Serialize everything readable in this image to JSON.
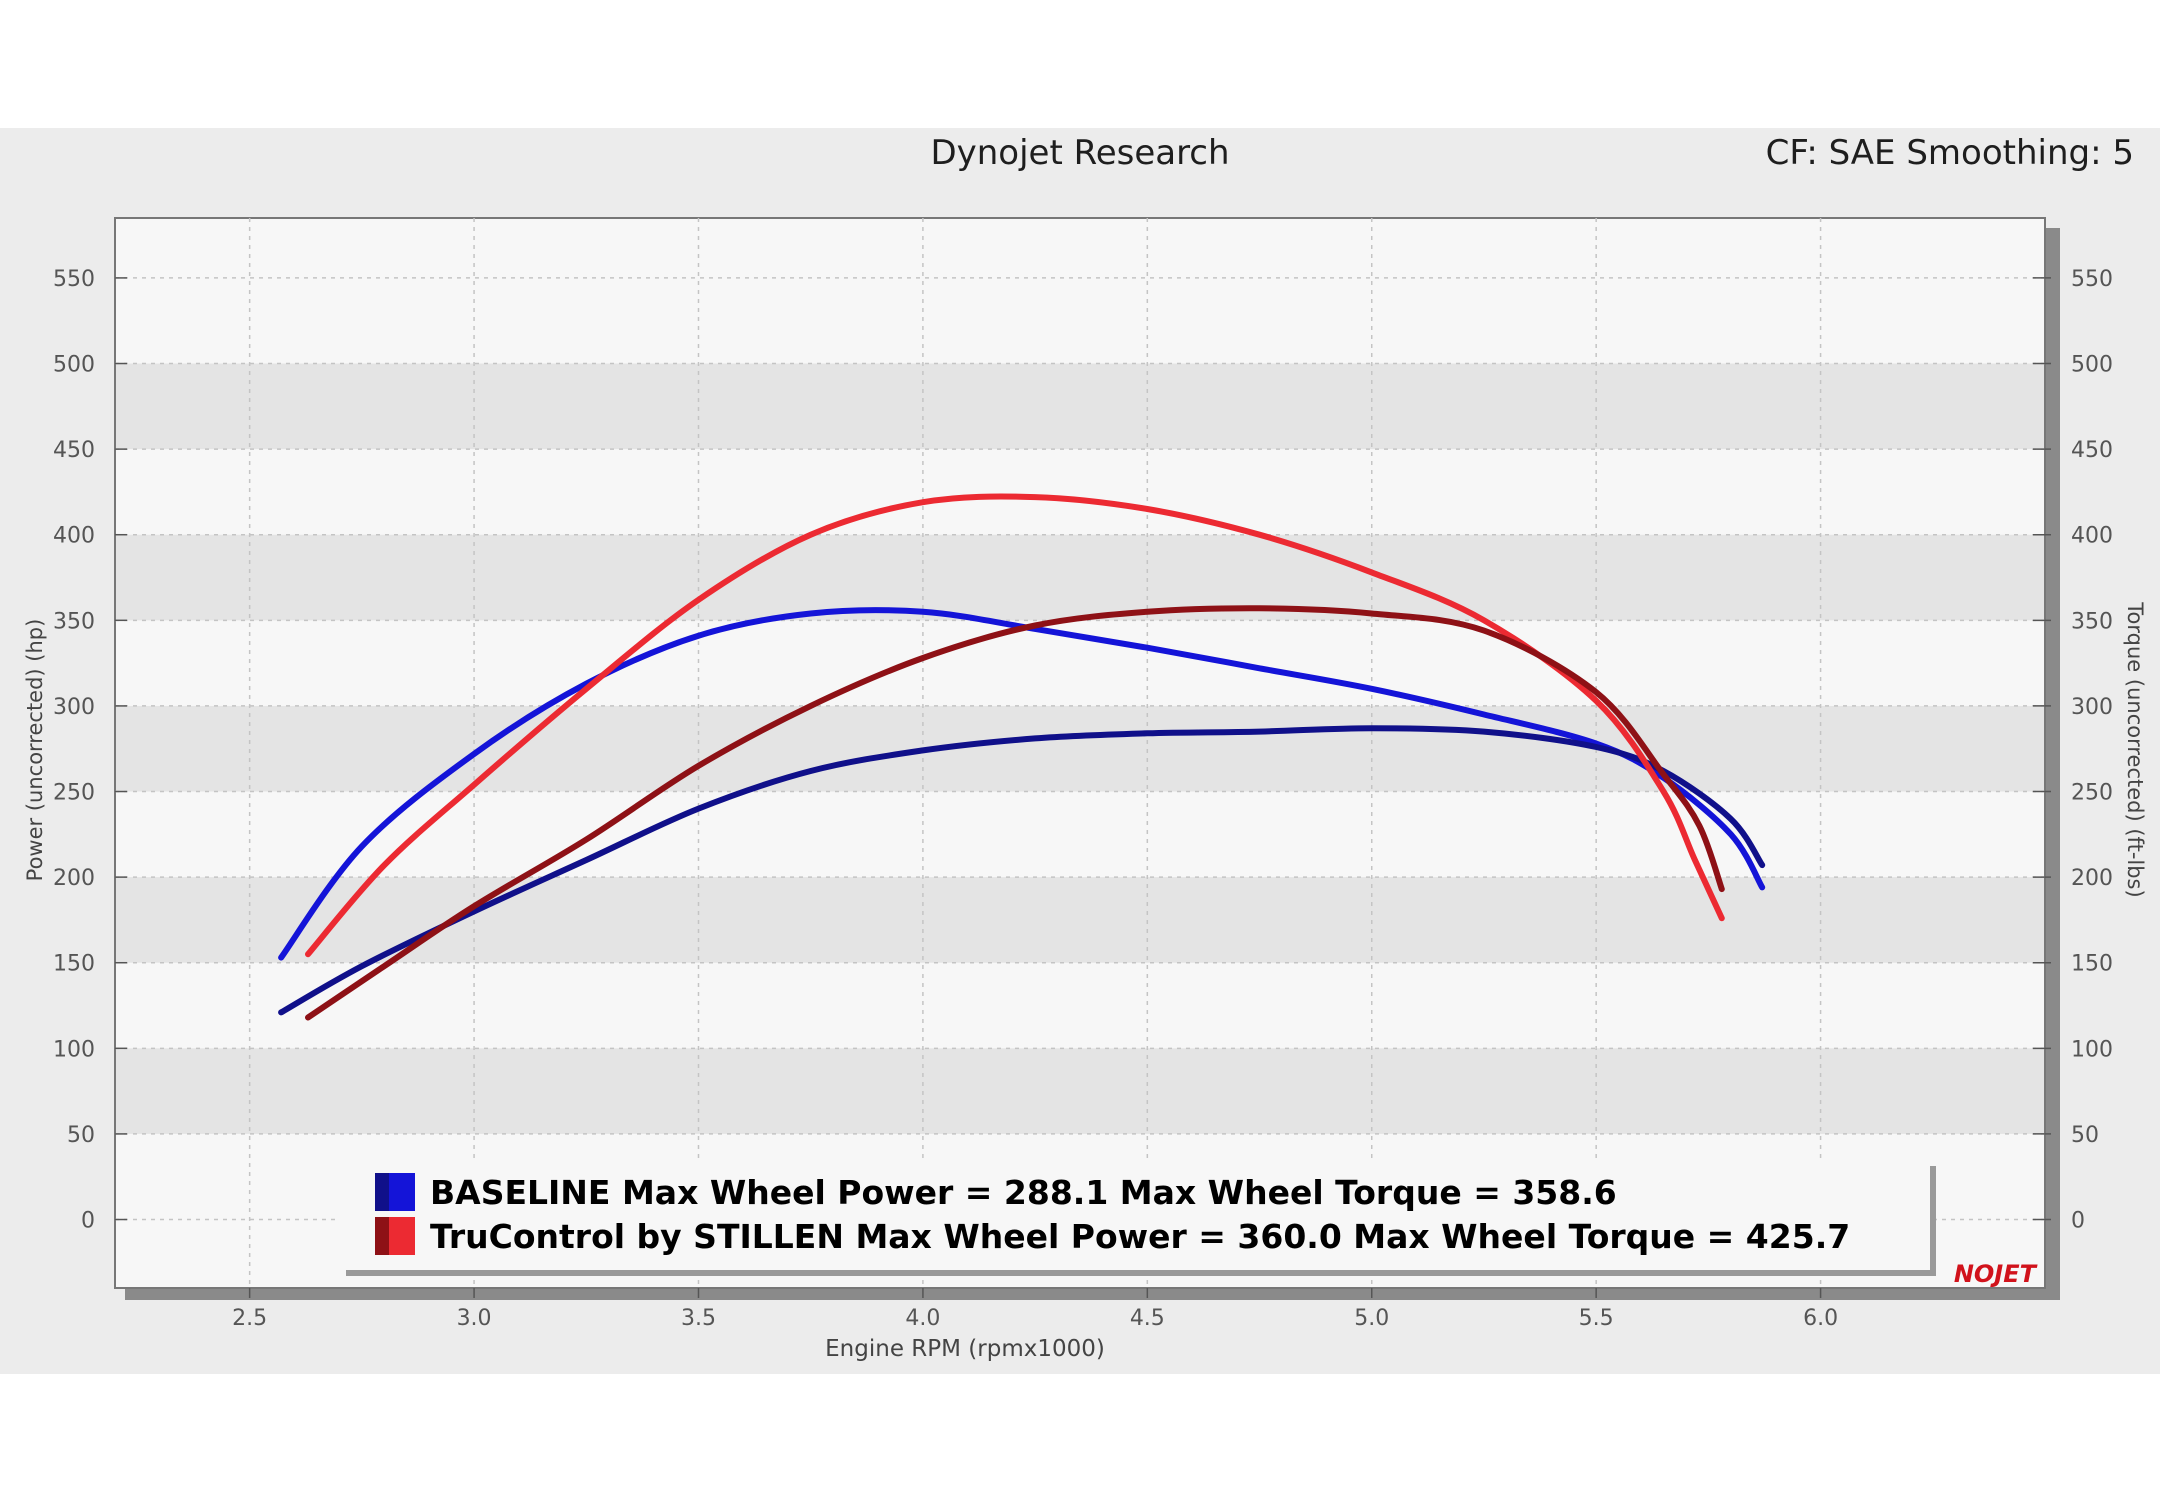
{
  "header": {
    "title": "Dynojet Research",
    "settings": "CF: SAE Smoothing: 5"
  },
  "logo_text": "NOJET",
  "colors": {
    "baseline": "#1414d8",
    "baseline_torque": "#10108a",
    "trucontrol": "#ec2a32",
    "trucontrol_torque": "#8e1116",
    "band": "#e4e4e4",
    "panel": "#ececec"
  },
  "chart_data": {
    "type": "line",
    "xlabel": "Engine RPM (rpmx1000)",
    "ylabel": "Power (uncorrected) (hp)",
    "ylabel_right": "Torque (uncorrected) (ft-lbs)",
    "xlim": [
      2.2,
      6.5
    ],
    "ylim": [
      -40,
      585
    ],
    "x_ticks": [
      "2.5",
      "3.0",
      "3.5",
      "4.0",
      "4.5",
      "5.0",
      "5.5",
      "6.0"
    ],
    "x_tick_values": [
      2.5,
      3.0,
      3.5,
      4.0,
      4.5,
      5.0,
      5.5,
      6.0
    ],
    "y_ticks": [
      "0",
      "50",
      "100",
      "150",
      "200",
      "250",
      "300",
      "350",
      "400",
      "450",
      "500",
      "550"
    ],
    "y_tick_values": [
      0,
      50,
      100,
      150,
      200,
      250,
      300,
      350,
      400,
      450,
      500,
      550
    ],
    "grid": true,
    "legend": {
      "placement": "bottom",
      "entries": [
        "BASELINE Max Wheel Power = 288.1 Max Wheel Torque = 358.6",
        "TruControl by STILLEN Max Wheel Power = 360.0 Max Wheel Torque = 425.7"
      ]
    },
    "series": [
      {
        "name": "BASELINE",
        "measure": "torque",
        "color": "#1414d8",
        "x": [
          2.57,
          2.75,
          3.0,
          3.25,
          3.5,
          3.75,
          4.0,
          4.25,
          4.5,
          4.75,
          5.0,
          5.25,
          5.5,
          5.65,
          5.8,
          5.87
        ],
        "y": [
          153,
          218,
          272,
          313,
          341,
          354,
          355,
          345,
          334,
          322,
          310,
          295,
          278,
          258,
          225,
          194
        ]
      },
      {
        "name": "BASELINE",
        "measure": "power",
        "color": "#10108a",
        "x": [
          2.57,
          2.75,
          3.0,
          3.25,
          3.5,
          3.75,
          4.0,
          4.25,
          4.5,
          4.75,
          5.0,
          5.25,
          5.5,
          5.65,
          5.8,
          5.87
        ],
        "y": [
          121,
          148,
          180,
          210,
          240,
          262,
          274,
          281,
          284,
          285,
          287,
          285,
          276,
          262,
          234,
          207
        ]
      },
      {
        "name": "TruControl by STILLEN",
        "measure": "torque",
        "color": "#ec2a32",
        "x": [
          2.63,
          2.8,
          3.0,
          3.25,
          3.5,
          3.75,
          4.0,
          4.25,
          4.5,
          4.75,
          5.0,
          5.25,
          5.5,
          5.65,
          5.72,
          5.78
        ],
        "y": [
          155,
          207,
          254,
          310,
          362,
          400,
          419,
          422,
          415,
          400,
          378,
          350,
          303,
          250,
          210,
          176
        ]
      },
      {
        "name": "TruControl by STILLEN",
        "measure": "power",
        "color": "#8e1116",
        "x": [
          2.63,
          2.8,
          3.0,
          3.25,
          3.5,
          3.75,
          4.0,
          4.25,
          4.5,
          4.75,
          5.0,
          5.25,
          5.5,
          5.65,
          5.73,
          5.78
        ],
        "y": [
          118,
          148,
          183,
          222,
          265,
          300,
          328,
          347,
          355,
          357,
          354,
          344,
          308,
          260,
          230,
          193
        ]
      }
    ]
  }
}
